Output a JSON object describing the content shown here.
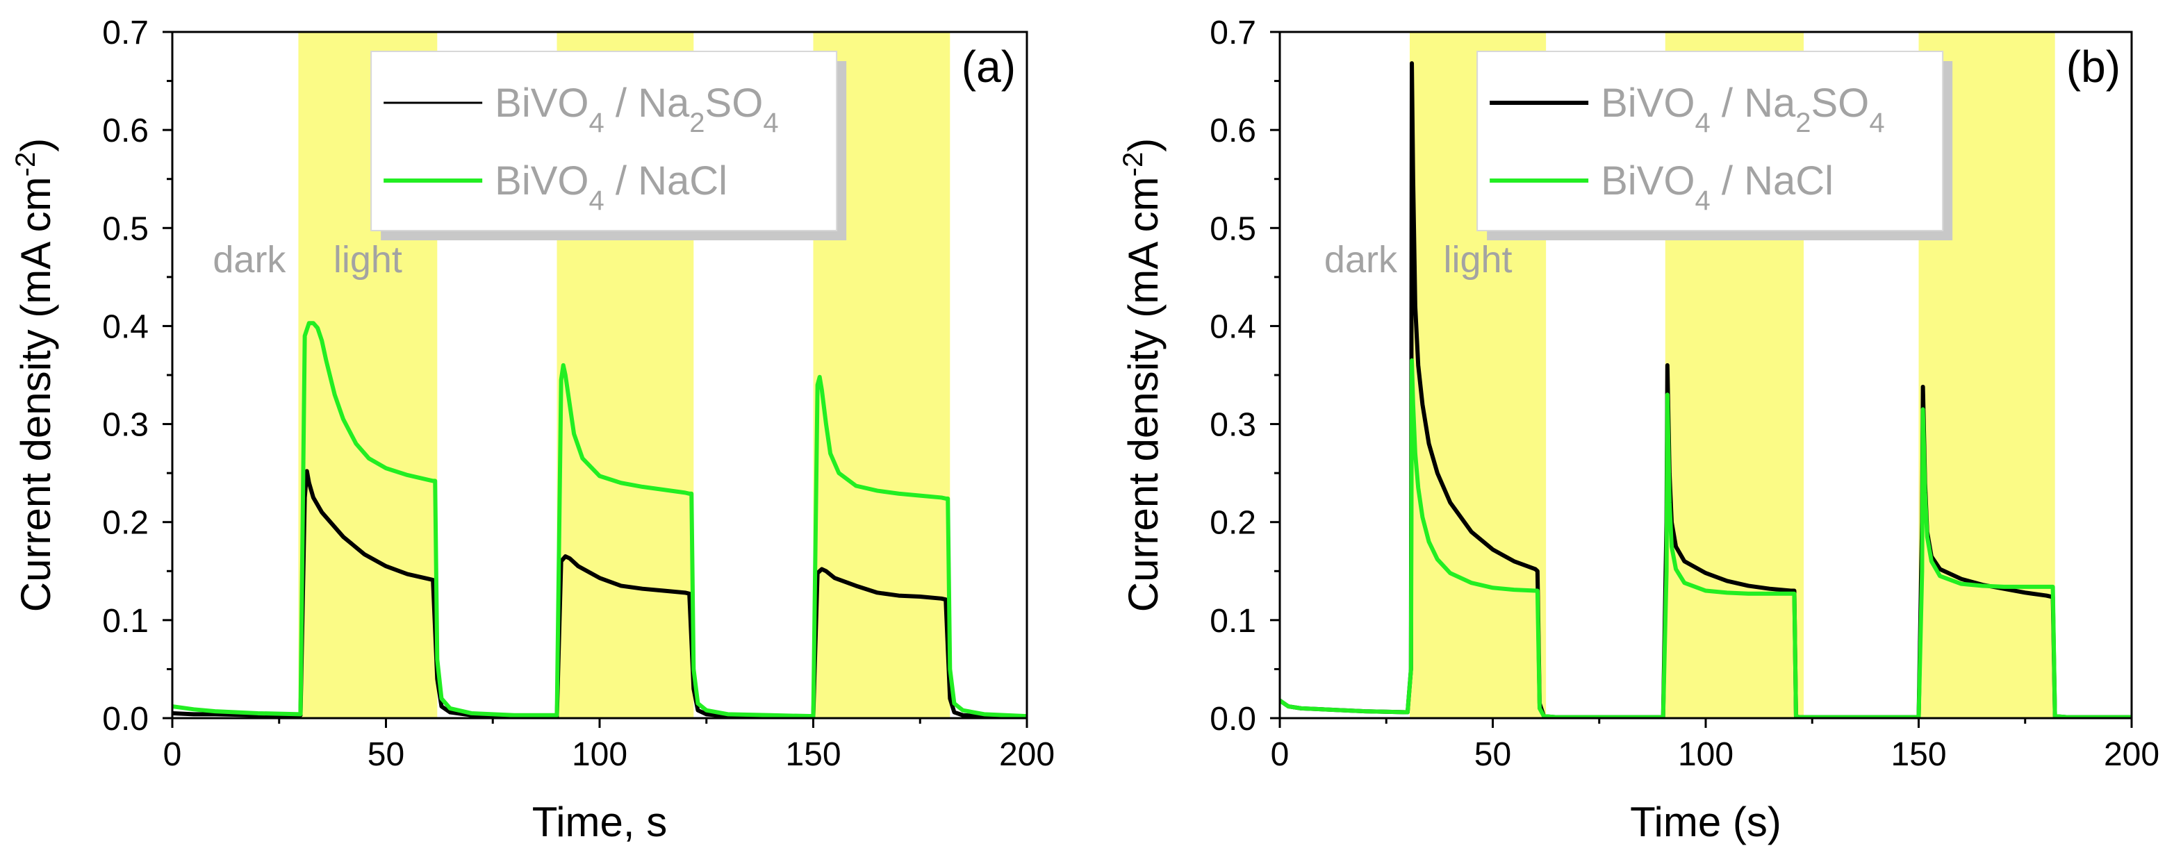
{
  "chart_data": [
    {
      "type": "line",
      "panel_label": "(a)",
      "xlabel": "Time, s",
      "ylabel": "Current density (mA cm",
      "ylabel_sup": "-2",
      "ylabel_end": ")",
      "xlim": [
        0,
        200
      ],
      "ylim": [
        0,
        0.7
      ],
      "xticks": [
        0,
        50,
        100,
        150,
        200
      ],
      "xtick_labels": [
        "0",
        "50",
        "100",
        "150",
        "200"
      ],
      "yticks": [
        0,
        0.1,
        0.2,
        0.3,
        0.4,
        0.5,
        0.6,
        0.7
      ],
      "ytick_labels": [
        "0.0",
        "0.1",
        "0.2",
        "0.3",
        "0.4",
        "0.5",
        "0.6",
        "0.7"
      ],
      "light_periods": [
        [
          29.5,
          62
        ],
        [
          90,
          122
        ],
        [
          150,
          182
        ]
      ],
      "region_labels": {
        "dark": "dark",
        "light": "light"
      },
      "legend": [
        {
          "parts": [
            "BiVO",
            "4",
            " / Na",
            "2",
            "SO",
            "4"
          ],
          "color": "#000000"
        },
        {
          "parts": [
            "BiVO",
            "4",
            " / NaCl"
          ],
          "color": "#22ee22"
        }
      ],
      "series": [
        {
          "name": "BiVO4 / Na2SO4",
          "color": "#000000",
          "x": [
            0,
            5,
            10,
            20,
            30,
            31,
            31.5,
            32,
            33,
            35,
            40,
            45,
            50,
            55,
            60,
            61,
            62,
            63,
            65,
            70,
            80,
            90,
            91,
            92,
            93,
            95,
            100,
            105,
            110,
            115,
            120,
            121,
            122,
            123,
            125,
            130,
            140,
            150,
            151,
            152,
            153,
            155,
            160,
            165,
            170,
            175,
            180,
            181,
            182,
            183,
            185,
            190,
            200
          ],
          "y": [
            0.005,
            0.004,
            0.004,
            0.003,
            0.003,
            0.225,
            0.252,
            0.24,
            0.225,
            0.21,
            0.185,
            0.167,
            0.155,
            0.147,
            0.142,
            0.141,
            0.04,
            0.012,
            0.006,
            0.003,
            0.002,
            0.002,
            0.16,
            0.165,
            0.163,
            0.155,
            0.143,
            0.135,
            0.132,
            0.13,
            0.128,
            0.127,
            0.03,
            0.008,
            0.004,
            0.002,
            0.002,
            0.002,
            0.148,
            0.152,
            0.15,
            0.143,
            0.135,
            0.128,
            0.125,
            0.124,
            0.122,
            0.121,
            0.02,
            0.006,
            0.003,
            0.002,
            0.001
          ]
        },
        {
          "name": "BiVO4 / NaCl",
          "color": "#22ee22",
          "x": [
            0,
            5,
            10,
            20,
            30,
            31,
            32,
            33,
            34,
            35,
            36,
            38,
            40,
            43,
            46,
            50,
            55,
            60,
            61,
            61.5,
            62,
            63,
            65,
            70,
            80,
            90,
            91,
            91.5,
            92,
            93,
            94,
            96,
            100,
            105,
            110,
            115,
            120,
            121,
            121.5,
            122,
            123,
            125,
            130,
            140,
            150,
            151,
            151.5,
            152,
            153,
            154,
            156,
            160,
            165,
            170,
            175,
            180,
            181,
            181.5,
            182,
            183,
            185,
            190,
            200
          ],
          "y": [
            0.012,
            0.009,
            0.007,
            0.005,
            0.004,
            0.39,
            0.403,
            0.403,
            0.398,
            0.385,
            0.365,
            0.33,
            0.305,
            0.28,
            0.265,
            0.255,
            0.248,
            0.243,
            0.242,
            0.242,
            0.06,
            0.02,
            0.01,
            0.005,
            0.003,
            0.003,
            0.345,
            0.36,
            0.35,
            0.32,
            0.29,
            0.265,
            0.247,
            0.24,
            0.236,
            0.233,
            0.23,
            0.229,
            0.229,
            0.05,
            0.015,
            0.008,
            0.004,
            0.003,
            0.002,
            0.34,
            0.348,
            0.335,
            0.3,
            0.27,
            0.25,
            0.237,
            0.232,
            0.229,
            0.227,
            0.225,
            0.224,
            0.224,
            0.05,
            0.015,
            0.008,
            0.004,
            0.002
          ]
        }
      ]
    },
    {
      "type": "line",
      "panel_label": "(b)",
      "xlabel": "Time (s)",
      "ylabel": "Current density (mA cm",
      "ylabel_sup": "-2",
      "ylabel_end": ")",
      "xlim": [
        0,
        200
      ],
      "ylim": [
        0,
        0.7
      ],
      "xticks": [
        0,
        50,
        100,
        150,
        200
      ],
      "xtick_labels": [
        "0",
        "50",
        "100",
        "150",
        "200"
      ],
      "yticks": [
        0,
        0.1,
        0.2,
        0.3,
        0.4,
        0.5,
        0.6,
        0.7
      ],
      "ytick_labels": [
        "0.0",
        "0.1",
        "0.2",
        "0.3",
        "0.4",
        "0.5",
        "0.6",
        "0.7"
      ],
      "light_periods": [
        [
          30.5,
          62.5
        ],
        [
          90.5,
          123
        ],
        [
          150,
          182
        ]
      ],
      "region_labels": {
        "dark": "dark",
        "light": "light"
      },
      "legend": [
        {
          "parts": [
            "BiVO",
            "4",
            " / Na",
            "2",
            "SO",
            "4"
          ],
          "color": "#000000"
        },
        {
          "parts": [
            "BiVO",
            "4",
            " / NaCl"
          ],
          "color": "#22ee22"
        }
      ],
      "series": [
        {
          "name": "BiVO4 / Na2SO4",
          "color": "#000000",
          "x": [
            0,
            2,
            5,
            10,
            20,
            30,
            30.8,
            31,
            31.3,
            31.8,
            32.5,
            33.5,
            35,
            37,
            40,
            45,
            50,
            55,
            60,
            60.5,
            61,
            62,
            65,
            70,
            80,
            90,
            90.8,
            91,
            91.5,
            92,
            93,
            95,
            100,
            105,
            110,
            115,
            120,
            120.8,
            121.2,
            122,
            125,
            130,
            140,
            150,
            150.8,
            151,
            151.5,
            152,
            153,
            155,
            160,
            165,
            170,
            175,
            180,
            181,
            181.5,
            182,
            185,
            190,
            200
          ],
          "y": [
            0.018,
            0.012,
            0.01,
            0.009,
            0.007,
            0.006,
            0.05,
            0.668,
            0.55,
            0.42,
            0.36,
            0.32,
            0.28,
            0.25,
            0.22,
            0.19,
            0.172,
            0.16,
            0.152,
            0.15,
            0.015,
            0.002,
            0.001,
            0.001,
            0.001,
            0.001,
            0.2,
            0.36,
            0.25,
            0.2,
            0.175,
            0.16,
            0.148,
            0.14,
            0.135,
            0.132,
            0.13,
            0.13,
            0.002,
            0.001,
            0.001,
            0.001,
            0.001,
            0.001,
            0.2,
            0.338,
            0.24,
            0.19,
            0.165,
            0.152,
            0.142,
            0.136,
            0.132,
            0.128,
            0.125,
            0.124,
            0.124,
            0.002,
            0.001,
            0.001,
            0.001
          ]
        },
        {
          "name": "BiVO4 / NaCl",
          "color": "#22ee22",
          "x": [
            0,
            2,
            5,
            10,
            20,
            30,
            30.8,
            31,
            31.3,
            31.8,
            32.5,
            33.5,
            35,
            37,
            40,
            45,
            50,
            55,
            60,
            60.5,
            61,
            62,
            65,
            70,
            80,
            90,
            90.8,
            91,
            91.5,
            92,
            93,
            95,
            100,
            105,
            110,
            115,
            120,
            120.8,
            121.2,
            122,
            125,
            130,
            140,
            150,
            150.8,
            151,
            151.5,
            152,
            153,
            155,
            160,
            165,
            170,
            175,
            180,
            181,
            181.5,
            182,
            185,
            190,
            200
          ],
          "y": [
            0.018,
            0.012,
            0.01,
            0.009,
            0.007,
            0.006,
            0.05,
            0.365,
            0.32,
            0.27,
            0.235,
            0.205,
            0.18,
            0.162,
            0.148,
            0.138,
            0.133,
            0.131,
            0.13,
            0.13,
            0.01,
            0.002,
            0.001,
            0.001,
            0.001,
            0.001,
            0.15,
            0.33,
            0.22,
            0.175,
            0.152,
            0.138,
            0.13,
            0.128,
            0.127,
            0.127,
            0.127,
            0.127,
            0.002,
            0.001,
            0.001,
            0.001,
            0.001,
            0.001,
            0.15,
            0.315,
            0.23,
            0.185,
            0.16,
            0.145,
            0.137,
            0.135,
            0.134,
            0.134,
            0.134,
            0.134,
            0.134,
            0.002,
            0.001,
            0.001,
            0.001
          ]
        }
      ]
    }
  ]
}
